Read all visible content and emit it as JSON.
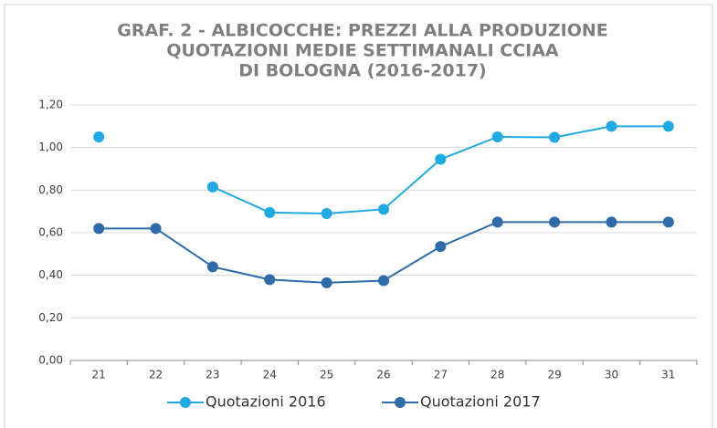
{
  "chart_data": {
    "type": "line",
    "title": [
      "GRAF. 2 - ALBICOCCHE: PREZZI ALLA PRODUZIONE",
      "QUOTAZIONI MEDIE SETTIMANALI CCIAA",
      "DI BOLOGNA (2016-2017)"
    ],
    "categories": [
      "21",
      "22",
      "23",
      "24",
      "25",
      "26",
      "27",
      "28",
      "29",
      "30",
      "31"
    ],
    "series": [
      {
        "name": "Quotazioni 2016",
        "color": "#21a9e1",
        "values": [
          1.05,
          null,
          0.815,
          0.695,
          0.69,
          0.71,
          0.945,
          1.05,
          1.048,
          1.1,
          1.1
        ]
      },
      {
        "name": "Quotazioni 2017",
        "color": "#2f6ba8",
        "values": [
          0.62,
          0.62,
          0.44,
          0.38,
          0.365,
          0.375,
          0.535,
          0.65,
          0.65,
          0.65,
          0.65
        ]
      }
    ],
    "ylim": [
      0,
      1.2
    ],
    "yticks": [
      {
        "value": 0,
        "label": "0,00"
      },
      {
        "value": 0.2,
        "label": "0,20"
      },
      {
        "value": 0.4,
        "label": "0,40"
      },
      {
        "value": 0.6,
        "label": "0,60"
      },
      {
        "value": 0.8,
        "label": "0,80"
      },
      {
        "value": 1.0,
        "label": "1,00"
      },
      {
        "value": 1.2,
        "label": "1,20"
      }
    ],
    "grid": true,
    "legend": "bottom"
  }
}
